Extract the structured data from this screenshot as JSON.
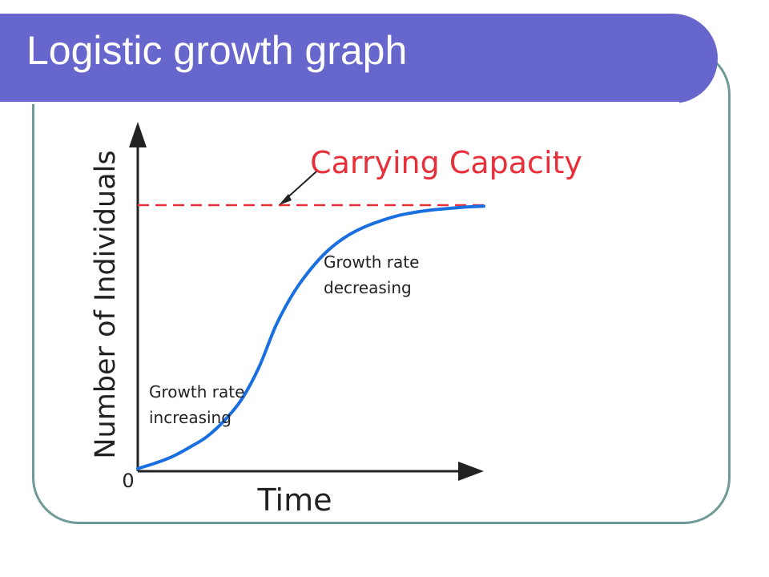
{
  "slide": {
    "title": "Logistic growth graph",
    "frame_color": "#6f9a97",
    "title_band_color": "#6766cc"
  },
  "chart_data": {
    "type": "line",
    "title": "",
    "xlabel": "Time",
    "ylabel": "Number of Individuals",
    "origin_label": "0",
    "xlim": [
      0,
      10
    ],
    "ylim": [
      0,
      100
    ],
    "x_ticks": [],
    "y_ticks": [],
    "grid": false,
    "legend": "none",
    "series": [
      {
        "color": "#1a6fe0",
        "x": [
          0,
          0.5,
          1,
          1.5,
          2,
          2.5,
          3,
          3.5,
          4,
          4.5,
          5,
          5.5,
          6,
          6.5,
          7,
          7.5,
          8,
          8.5,
          9,
          9.5,
          10
        ],
        "y": [
          1,
          3,
          5.5,
          9,
          13,
          19,
          27,
          39,
          55,
          67,
          76,
          83,
          88,
          91.5,
          94,
          96,
          97.3,
          98.2,
          98.8,
          99.3,
          99.6
        ]
      }
    ],
    "reference_line": {
      "label": "Carrying Capacity",
      "y": 100,
      "color": "#e8303a",
      "style": "dashed"
    },
    "annotations": [
      {
        "id": "increasing",
        "lines": [
          "Growth rate",
          "increasing"
        ],
        "x": 0.3,
        "y": 30
      },
      {
        "id": "decreasing",
        "lines": [
          "Growth rate",
          "decreasing"
        ],
        "x": 5.4,
        "y": 78
      }
    ]
  }
}
